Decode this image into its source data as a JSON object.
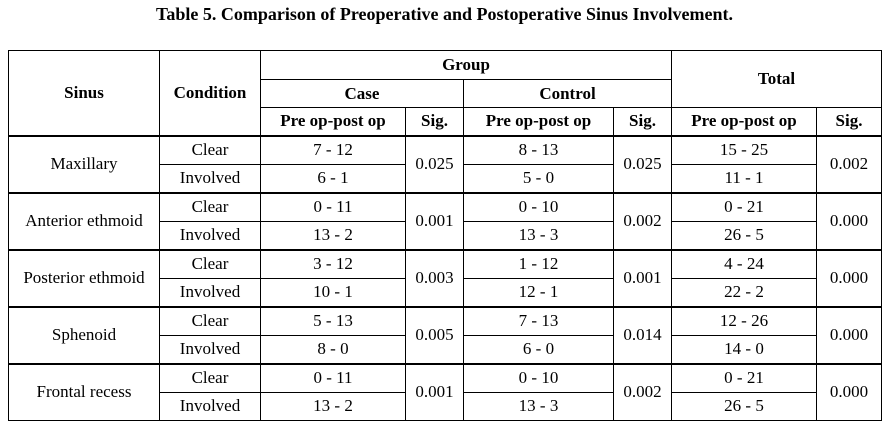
{
  "caption": "Table 5. Comparison of Preoperative and Postoperative Sinus Involvement.",
  "headers": {
    "sinus": "Sinus",
    "condition": "Condition",
    "group": "Group",
    "case": "Case",
    "control": "Control",
    "total": "Total",
    "preop": "Pre op-post op",
    "sig": "Sig."
  },
  "rows": [
    {
      "sinus": "Maxillary",
      "clear": {
        "condition": "Clear",
        "case": "7 - 12",
        "control": "8 - 13",
        "total": "15 - 25"
      },
      "involved": {
        "condition": "Involved",
        "case": "6 - 1",
        "control": "5 - 0",
        "total": "11 - 1"
      },
      "case_sig": "0.025",
      "control_sig": "0.025",
      "total_sig": "0.002"
    },
    {
      "sinus": "Anterior ethmoid",
      "clear": {
        "condition": "Clear",
        "case": "0 - 11",
        "control": "0 - 10",
        "total": "0 - 21"
      },
      "involved": {
        "condition": "Involved",
        "case": "13 - 2",
        "control": "13 - 3",
        "total": "26 - 5"
      },
      "case_sig": "0.001",
      "control_sig": "0.002",
      "total_sig": "0.000"
    },
    {
      "sinus": "Posterior ethmoid",
      "clear": {
        "condition": "Clear",
        "case": "3 - 12",
        "control": "1 - 12",
        "total": "4 - 24"
      },
      "involved": {
        "condition": "Involved",
        "case": "10 - 1",
        "control": "12 - 1",
        "total": "22 - 2"
      },
      "case_sig": "0.003",
      "control_sig": "0.001",
      "total_sig": "0.000"
    },
    {
      "sinus": "Sphenoid",
      "clear": {
        "condition": "Clear",
        "case": "5 - 13",
        "control": "7 - 13",
        "total": "12 - 26"
      },
      "involved": {
        "condition": "Involved",
        "case": "8 - 0",
        "control": "6 - 0",
        "total": "14 - 0"
      },
      "case_sig": "0.005",
      "control_sig": "0.014",
      "total_sig": "0.000"
    },
    {
      "sinus": "Frontal recess",
      "clear": {
        "condition": "Clear",
        "case": "0 - 11",
        "control": "0 - 10",
        "total": "0 - 21"
      },
      "involved": {
        "condition": "Involved",
        "case": "13 - 2",
        "control": "13 - 3",
        "total": "26 - 5"
      },
      "case_sig": "0.001",
      "control_sig": "0.002",
      "total_sig": "0.000"
    }
  ]
}
